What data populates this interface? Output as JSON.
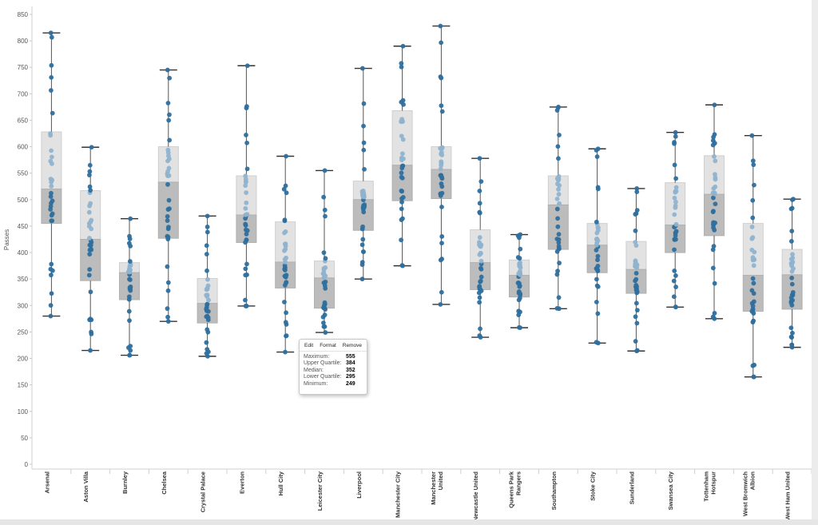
{
  "chart_data": {
    "type": "box",
    "ylabel": "Passes",
    "ylim": [
      0,
      850
    ],
    "ytick_step": 50,
    "grid": false,
    "colors": {
      "point": "#2e6f9e",
      "point_light": "#8fb3cf",
      "upper_box": "#e2e2e2",
      "lower_box": "#bcbcbc",
      "whisker": "#555555"
    },
    "categories": [
      {
        "label": "Arsenal",
        "max": 815,
        "q3": 628,
        "median": 520,
        "q1": 455,
        "min": 280
      },
      {
        "label": "Aston Villa",
        "max": 599,
        "q3": 517,
        "median": 425,
        "q1": 347,
        "min": 215
      },
      {
        "label": "Burnley",
        "max": 464,
        "q3": 381,
        "median": 362,
        "q1": 311,
        "min": 206
      },
      {
        "label": "Chelsea",
        "max": 745,
        "q3": 600,
        "median": 533,
        "q1": 427,
        "min": 270
      },
      {
        "label": "Crystal Palace",
        "max": 469,
        "q3": 351,
        "median": 304,
        "q1": 267,
        "min": 204
      },
      {
        "label": "Everton",
        "max": 753,
        "q3": 545,
        "median": 471,
        "q1": 419,
        "min": 299
      },
      {
        "label": "Hull City",
        "max": 582,
        "q3": 458,
        "median": 382,
        "q1": 333,
        "min": 212
      },
      {
        "label": "Leicester City",
        "max": 555,
        "q3": 384,
        "median": 352,
        "q1": 295,
        "min": 249
      },
      {
        "label": "Liverpool",
        "max": 748,
        "q3": 535,
        "median": 500,
        "q1": 442,
        "min": 350
      },
      {
        "label": "Manchester City",
        "max": 790,
        "q3": 668,
        "median": 565,
        "q1": 498,
        "min": 375
      },
      {
        "label": "Manchester United",
        "lines": [
          "Manchester",
          "United"
        ],
        "max": 828,
        "q3": 600,
        "median": 557,
        "q1": 502,
        "min": 302
      },
      {
        "label": "Newcastle United",
        "max": 578,
        "q3": 443,
        "median": 381,
        "q1": 330,
        "min": 240
      },
      {
        "label": "Queens Park Rangers",
        "lines": [
          "Queens Park",
          "Rangers"
        ],
        "max": 434,
        "q3": 386,
        "median": 357,
        "q1": 316,
        "min": 258
      },
      {
        "label": "Southampton",
        "max": 675,
        "q3": 545,
        "median": 490,
        "q1": 406,
        "min": 294
      },
      {
        "label": "Stoke City",
        "max": 596,
        "q3": 455,
        "median": 414,
        "q1": 362,
        "min": 229
      },
      {
        "label": "Sunderland",
        "max": 521,
        "q3": 421,
        "median": 368,
        "q1": 323,
        "min": 214
      },
      {
        "label": "Swansea City",
        "max": 627,
        "q3": 532,
        "median": 452,
        "q1": 400,
        "min": 297
      },
      {
        "label": "Tottenham Hotspur",
        "lines": [
          "Tottenham",
          "Hotspur"
        ],
        "max": 679,
        "q3": 583,
        "median": 510,
        "q1": 432,
        "min": 275
      },
      {
        "label": "West Bromwich Albion",
        "lines": [
          "West Bromwich",
          "Albion"
        ],
        "max": 621,
        "q3": 455,
        "median": 357,
        "q1": 289,
        "min": 165
      },
      {
        "label": "West Ham United",
        "max": 501,
        "q3": 406,
        "median": 358,
        "q1": 293,
        "min": 221
      }
    ]
  },
  "tooltip": {
    "actions": [
      "Edit",
      "Format",
      "Remove"
    ],
    "rows": [
      {
        "label": "Maximum:",
        "value": "555"
      },
      {
        "label": "Upper Quartile:",
        "value": "384"
      },
      {
        "label": "Median:",
        "value": "352"
      },
      {
        "label": "Lower Quartile:",
        "value": "295"
      },
      {
        "label": "Minimum:",
        "value": "249"
      }
    ]
  }
}
